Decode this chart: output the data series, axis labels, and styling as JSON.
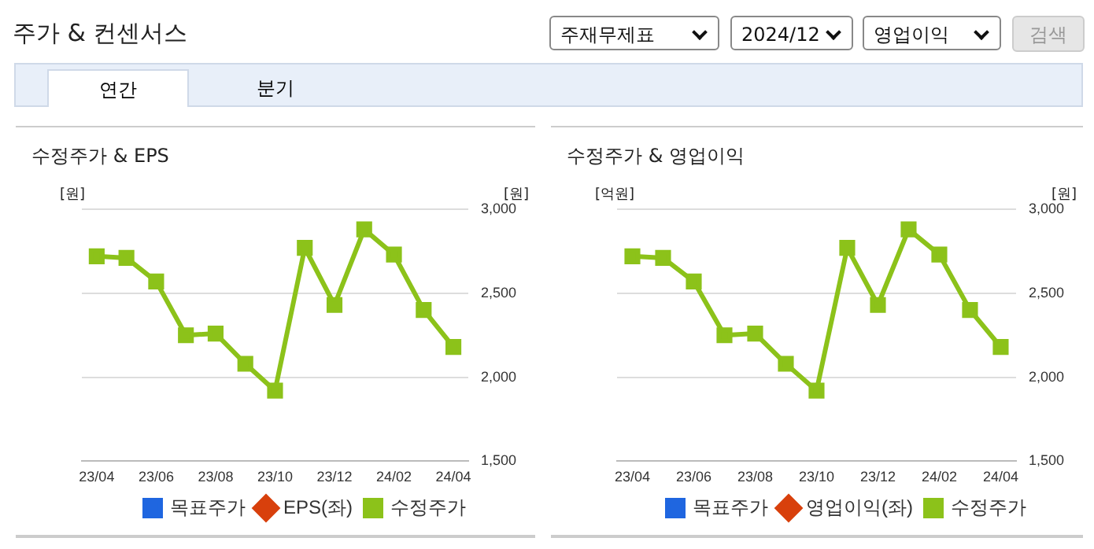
{
  "chart_data": [
    {
      "type": "other",
      "title": "주가 & 컨센서스",
      "annotations": [
        "주재무제표",
        "2024/12",
        "영업이익",
        "검색",
        "연간",
        "분기"
      ]
    },
    {
      "type": "line",
      "title": "수정주가 & EPS",
      "ylabel": "[원]",
      "y2label": "[원]",
      "categories": [
        "23/04",
        null,
        "23/06",
        null,
        "23/08",
        null,
        "23/10",
        null,
        "23/12",
        null,
        "24/02",
        null,
        "24/04"
      ],
      "y2lim": [
        1500,
        3000
      ],
      "y2ticks": [
        {
          "value": 1500,
          "label": "1,500"
        },
        {
          "value": 2000,
          "label": "2,000"
        },
        {
          "value": 2500,
          "label": "2,500"
        },
        {
          "value": 3000,
          "label": "3,000"
        }
      ],
      "grid": "y",
      "legend": "bottom",
      "series": [
        {
          "name": "목표주가",
          "type": "bar",
          "color": "#1f66e0",
          "marker": "square",
          "values": [
            null,
            null,
            null,
            null,
            null,
            null,
            null,
            null,
            null,
            null,
            null,
            null,
            null
          ]
        },
        {
          "name": "EPS(좌)",
          "type": "line",
          "color": "#d8400c",
          "marker": "diamond",
          "values": [
            null,
            null,
            null,
            null,
            null,
            null,
            null,
            null,
            null,
            null,
            null,
            null,
            null
          ]
        },
        {
          "name": "수정주가",
          "type": "line",
          "axis": "y2",
          "color": "#8cc21a",
          "marker": "square",
          "values": [
            2720,
            2710,
            2570,
            2250,
            2260,
            2080,
            1920,
            2770,
            2430,
            2880,
            2730,
            2400,
            2180
          ]
        }
      ]
    },
    {
      "type": "line",
      "title": "수정주가 & 영업이익",
      "ylabel": "[억원]",
      "y2label": "[원]",
      "categories": [
        "23/04",
        null,
        "23/06",
        null,
        "23/08",
        null,
        "23/10",
        null,
        "23/12",
        null,
        "24/02",
        null,
        "24/04"
      ],
      "y2lim": [
        1500,
        3000
      ],
      "y2ticks": [
        {
          "value": 1500,
          "label": "1,500"
        },
        {
          "value": 2000,
          "label": "2,000"
        },
        {
          "value": 2500,
          "label": "2,500"
        },
        {
          "value": 3000,
          "label": "3,000"
        }
      ],
      "grid": "y",
      "legend": "bottom",
      "series": [
        {
          "name": "목표주가",
          "type": "bar",
          "color": "#1f66e0",
          "marker": "square",
          "values": [
            null,
            null,
            null,
            null,
            null,
            null,
            null,
            null,
            null,
            null,
            null,
            null,
            null
          ]
        },
        {
          "name": "영업이익(좌)",
          "type": "line",
          "color": "#d8400c",
          "marker": "diamond",
          "values": [
            null,
            null,
            null,
            null,
            null,
            null,
            null,
            null,
            null,
            null,
            null,
            null,
            null
          ]
        },
        {
          "name": "수정주가",
          "type": "line",
          "axis": "y2",
          "color": "#8cc21a",
          "marker": "square",
          "values": [
            2720,
            2710,
            2570,
            2250,
            2260,
            2080,
            1920,
            2770,
            2430,
            2880,
            2730,
            2400,
            2180
          ]
        }
      ]
    }
  ]
}
